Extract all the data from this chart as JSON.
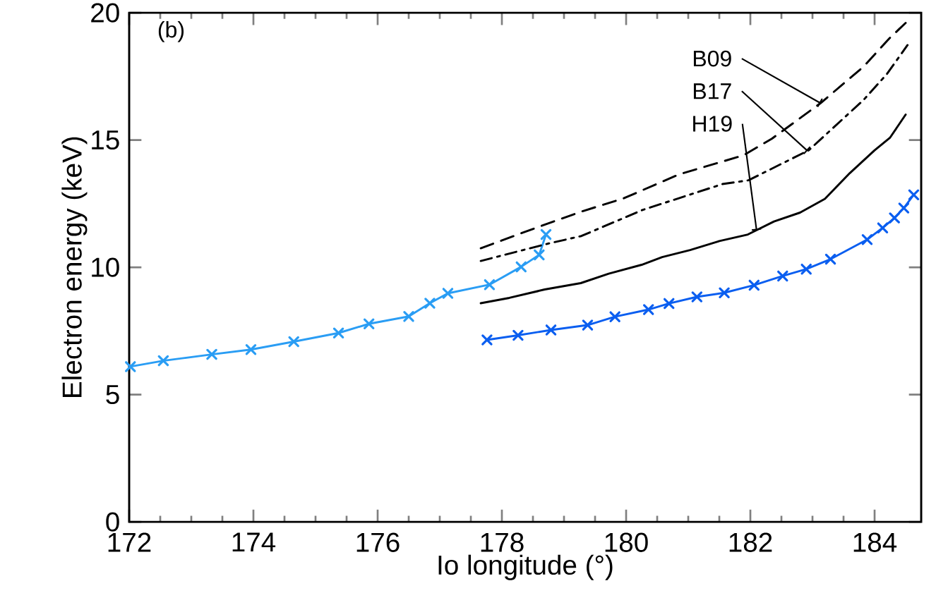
{
  "chart_data": {
    "type": "line",
    "xlabel": "Io longitude (°)",
    "ylabel": "Electron energy (keV)",
    "annotations": [
      "(b)"
    ],
    "xlim": [
      172,
      184.75
    ],
    "xticks": [
      172,
      174,
      176,
      178,
      180,
      182,
      184
    ],
    "ylim": [
      0,
      20
    ],
    "yticks": [
      0,
      5,
      10,
      15,
      20
    ],
    "series": [
      {
        "color": "#2a9df4",
        "marker": "cross",
        "line_style": "solid",
        "x": [
          172.02,
          172.55,
          173.33,
          173.96,
          174.65,
          175.37,
          175.86,
          176.5,
          176.84,
          177.13,
          177.8,
          178.31,
          178.6,
          178.71
        ],
        "values": [
          6.1,
          6.33,
          6.58,
          6.77,
          7.08,
          7.42,
          7.78,
          8.07,
          8.59,
          8.98,
          9.32,
          10.02,
          10.49,
          11.29
        ]
      },
      {
        "color": "#0a5ef0",
        "marker": "cross",
        "line_style": "solid",
        "x": [
          177.76,
          178.26,
          178.79,
          179.38,
          179.82,
          180.36,
          180.69,
          181.14,
          181.58,
          182.06,
          182.52,
          182.9,
          183.29,
          183.88,
          184.13,
          184.32,
          184.47,
          184.63
        ],
        "values": [
          7.15,
          7.33,
          7.54,
          7.73,
          8.06,
          8.34,
          8.58,
          8.84,
          9.0,
          9.3,
          9.66,
          9.93,
          10.32,
          11.09,
          11.55,
          11.94,
          12.33,
          12.85
        ]
      },
      {
        "name": "B09",
        "color": "#000000",
        "marker": "none",
        "line_style": "dashed",
        "x": [
          177.66,
          178.59,
          179.28,
          179.96,
          180.85,
          181.89,
          182.35,
          183.13,
          183.82,
          184.24,
          184.5
        ],
        "values": [
          10.75,
          11.59,
          12.19,
          12.71,
          13.65,
          14.4,
          15.06,
          16.45,
          17.88,
          19.0,
          19.6
        ]
      },
      {
        "name": "B17",
        "color": "#000000",
        "marker": "none",
        "line_style": "dashdot",
        "x": [
          177.66,
          178.74,
          179.28,
          180.26,
          181.55,
          181.97,
          182.94,
          183.82,
          184.2,
          184.53
        ],
        "values": [
          10.25,
          10.93,
          11.23,
          12.25,
          13.27,
          13.42,
          14.6,
          16.57,
          17.6,
          18.73
        ]
      },
      {
        "name": "H19",
        "color": "#000000",
        "marker": "none",
        "line_style": "solid",
        "x": [
          177.66,
          178.12,
          178.69,
          179.27,
          179.72,
          180.25,
          180.58,
          181.03,
          181.5,
          181.96,
          182.38,
          182.8,
          183.2,
          183.6,
          184.0,
          184.25,
          184.5
        ],
        "values": [
          8.59,
          8.8,
          9.13,
          9.38,
          9.75,
          10.1,
          10.4,
          10.68,
          11.03,
          11.29,
          11.8,
          12.15,
          12.69,
          13.7,
          14.6,
          15.1,
          16.0
        ]
      }
    ]
  }
}
